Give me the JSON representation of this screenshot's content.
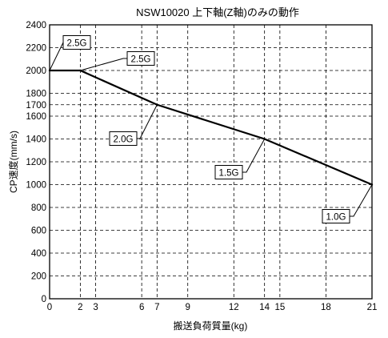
{
  "chart_data": {
    "type": "line",
    "title": "NSW10020 上下軸(Z軸)のみの動作",
    "xlabel": "搬送負荷質量(kg)",
    "ylabel": "CP速度(mm/s)",
    "xlim": [
      0,
      21
    ],
    "ylim": [
      0,
      2400
    ],
    "x_ticks": [
      0,
      2,
      3,
      6,
      7,
      9,
      12,
      14,
      15,
      18,
      21
    ],
    "y_ticks": [
      0,
      200,
      400,
      600,
      800,
      1000,
      1200,
      1400,
      1600,
      1700,
      1800,
      2000,
      2200,
      2400
    ],
    "grid": true,
    "series": [
      {
        "x": [
          0,
          2,
          7,
          14,
          21
        ],
        "y": [
          2000,
          2000,
          1700,
          1400,
          1000
        ]
      }
    ],
    "annotations": [
      {
        "text": "2.5G",
        "x": 0,
        "y": 2000
      },
      {
        "text": "2.5G",
        "x": 2,
        "y": 2000
      },
      {
        "text": "2.0G",
        "x": 7,
        "y": 1700
      },
      {
        "text": "1.5G",
        "x": 14,
        "y": 1400
      },
      {
        "text": "1.0G",
        "x": 21,
        "y": 1000
      }
    ]
  }
}
